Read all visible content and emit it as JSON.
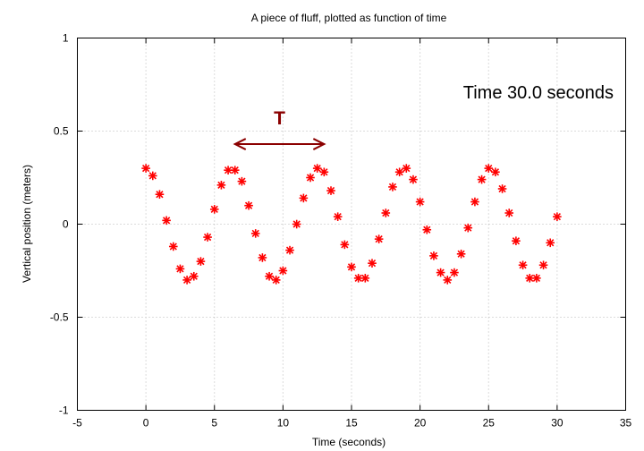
{
  "chart_data": {
    "type": "scatter",
    "title": "A piece of fluff, plotted as function of time",
    "xlabel": "Time (seconds)",
    "ylabel": "Vertical position (meters)",
    "xlim": [
      -5,
      35
    ],
    "ylim": [
      -1,
      1
    ],
    "x_ticks": [
      -5,
      0,
      5,
      10,
      15,
      20,
      25,
      30,
      35
    ],
    "y_ticks": [
      -1,
      -0.5,
      0,
      0.5,
      1
    ],
    "x_tick_labels": [
      "-5",
      "0",
      "5",
      "10",
      "15",
      "20",
      "25",
      "30",
      "35"
    ],
    "y_tick_labels": [
      "-1",
      "-0.5",
      "0",
      "0.5",
      "1"
    ],
    "grid": true,
    "series": [
      {
        "marker": "star",
        "color": "#ff0000",
        "x": [
          0,
          0.5,
          1,
          1.5,
          2,
          2.5,
          3,
          3.5,
          4,
          4.5,
          5,
          5.5,
          6,
          6.5,
          7,
          7.5,
          8,
          8.5,
          9,
          9.5,
          10,
          10.5,
          11,
          11.5,
          12,
          12.5,
          13,
          13.5,
          14,
          14.5,
          15,
          15.5,
          16,
          16.5,
          17,
          17.5,
          18,
          18.5,
          19,
          19.5,
          20,
          20.5,
          21,
          21.5,
          22,
          22.5,
          23,
          23.5,
          24,
          24.5,
          25,
          25.5,
          26,
          26.5,
          27,
          27.5,
          28,
          28.5,
          29,
          29.5,
          30
        ],
        "y": [
          0.3,
          0.26,
          0.16,
          0.02,
          -0.12,
          -0.24,
          -0.3,
          -0.28,
          -0.2,
          -0.07,
          0.08,
          0.21,
          0.29,
          0.29,
          0.23,
          0.1,
          -0.05,
          -0.18,
          -0.28,
          -0.3,
          -0.25,
          -0.14,
          0.0,
          0.14,
          0.25,
          0.3,
          0.28,
          0.18,
          0.04,
          -0.11,
          -0.23,
          -0.29,
          -0.29,
          -0.21,
          -0.08,
          0.06,
          0.2,
          0.28,
          0.3,
          0.24,
          0.12,
          -0.03,
          -0.17,
          -0.26,
          -0.3,
          -0.26,
          -0.16,
          -0.02,
          0.12,
          0.24,
          0.3,
          0.28,
          0.19,
          0.06,
          -0.09,
          -0.22,
          -0.29,
          -0.29,
          -0.22,
          -0.1,
          0.04
        ]
      }
    ],
    "annotations": {
      "time_text": "Time 30.0 seconds",
      "period_label": "T",
      "period_arrow": {
        "x_start": 6.5,
        "x_end": 13.0,
        "y": 0.43
      }
    }
  }
}
